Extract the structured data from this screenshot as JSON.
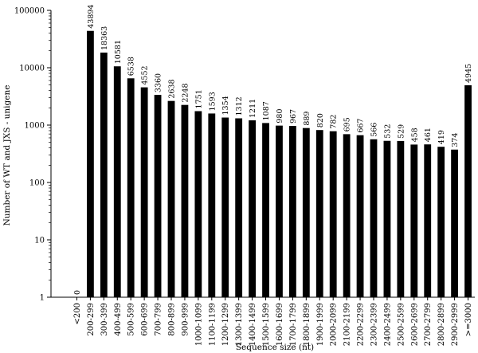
{
  "chart_data": {
    "type": "bar",
    "title": "",
    "xlabel": "Sequence size (nt)",
    "ylabel": "Number of WT and JXS - unigene",
    "y_scale": "log",
    "ylim": [
      1,
      100000
    ],
    "y_ticks": [
      "1",
      "10",
      "100",
      "1000",
      "10000",
      "100000"
    ],
    "grid": false,
    "bar_color": "#000000",
    "categories": [
      "<200",
      "200-299",
      "300-399",
      "400-499",
      "500-599",
      "600-699",
      "700-799",
      "800-899",
      "900-999",
      "1000-1099",
      "1100-1199",
      "1200-1299",
      "1300-1399",
      "1400-1499",
      "1500-1599",
      "1600-1699",
      "1700-1799",
      "1800-1899",
      "1900-1999",
      "2000-2099",
      "2100-2199",
      "2200-2299",
      "2300-2399",
      "2400-2499",
      "2500-2599",
      "2600-2699",
      "2700-2799",
      "2800-2899",
      "2900-2999",
      ">=3000"
    ],
    "values": [
      0,
      43894,
      18363,
      10581,
      6538,
      4552,
      3360,
      2638,
      2248,
      1751,
      1593,
      1354,
      1312,
      1211,
      1087,
      980,
      967,
      889,
      820,
      782,
      695,
      667,
      566,
      532,
      529,
      458,
      461,
      419,
      374,
      4945
    ]
  }
}
